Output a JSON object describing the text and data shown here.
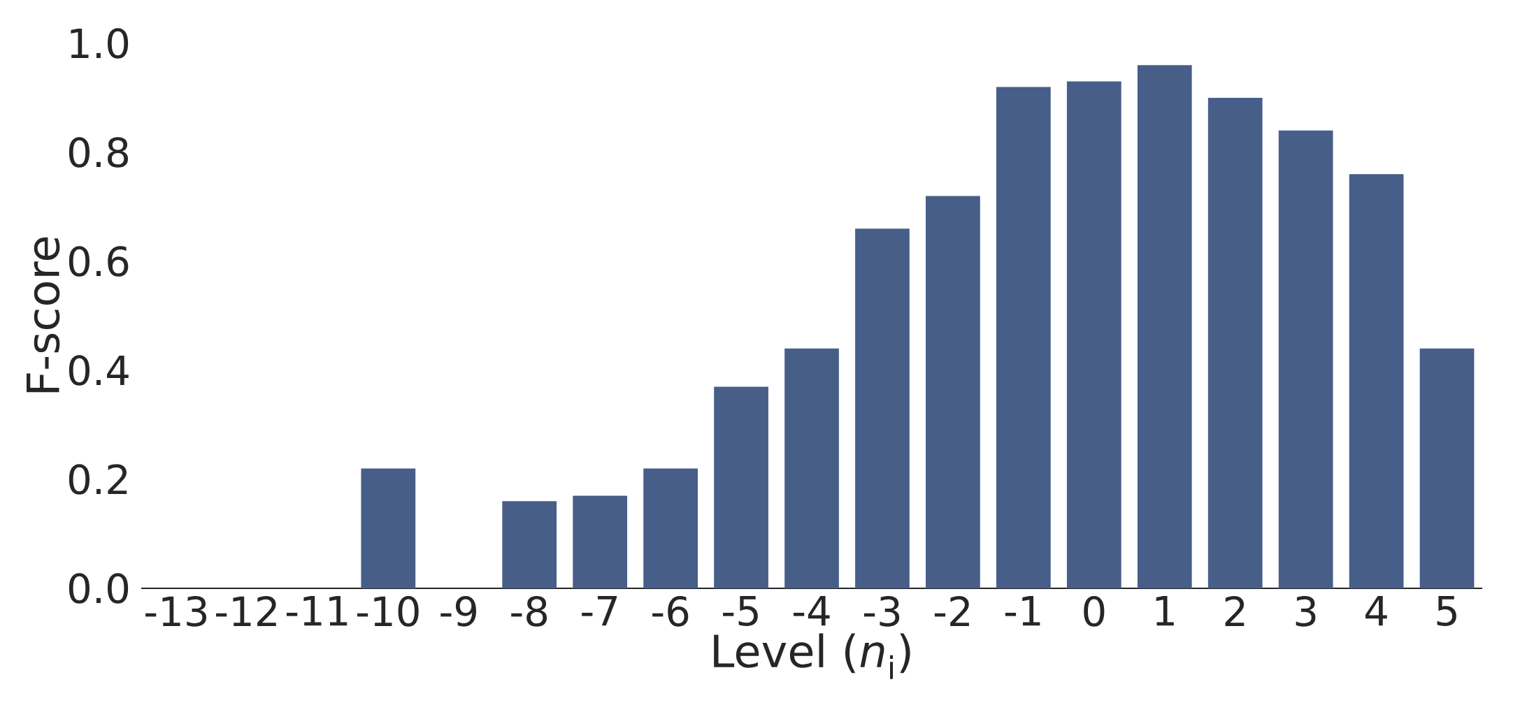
{
  "chart_data": {
    "type": "bar",
    "xlabel": "Level (*n*$_{i}$)",
    "ylabel": "F-score",
    "categories": [
      "-13",
      "-12",
      "-11",
      "-10",
      "-9",
      "-8",
      "-7",
      "-6",
      "-5",
      "-4",
      "-3",
      "-2",
      "-1",
      "0",
      "1",
      "2",
      "3",
      "4",
      "5"
    ],
    "values": [
      0,
      0,
      0,
      0.22,
      0,
      0.16,
      0.17,
      0.22,
      0.37,
      0.44,
      0.66,
      0.72,
      0.92,
      0.93,
      0.96,
      0.9,
      0.84,
      0.76,
      0.44
    ],
    "color": "#465e88",
    "ylim": [
      0,
      1.0
    ],
    "yticks": [
      {
        "value": 0,
        "label": "0.0"
      },
      {
        "value": 0.2,
        "label": "0.2"
      },
      {
        "value": 0.4,
        "label": "0.4"
      },
      {
        "value": 0.6,
        "label": "0.6"
      },
      {
        "value": 0.8,
        "label": "0.8"
      },
      {
        "value": 1.0,
        "label": "1.0"
      }
    ],
    "grid": false
  }
}
